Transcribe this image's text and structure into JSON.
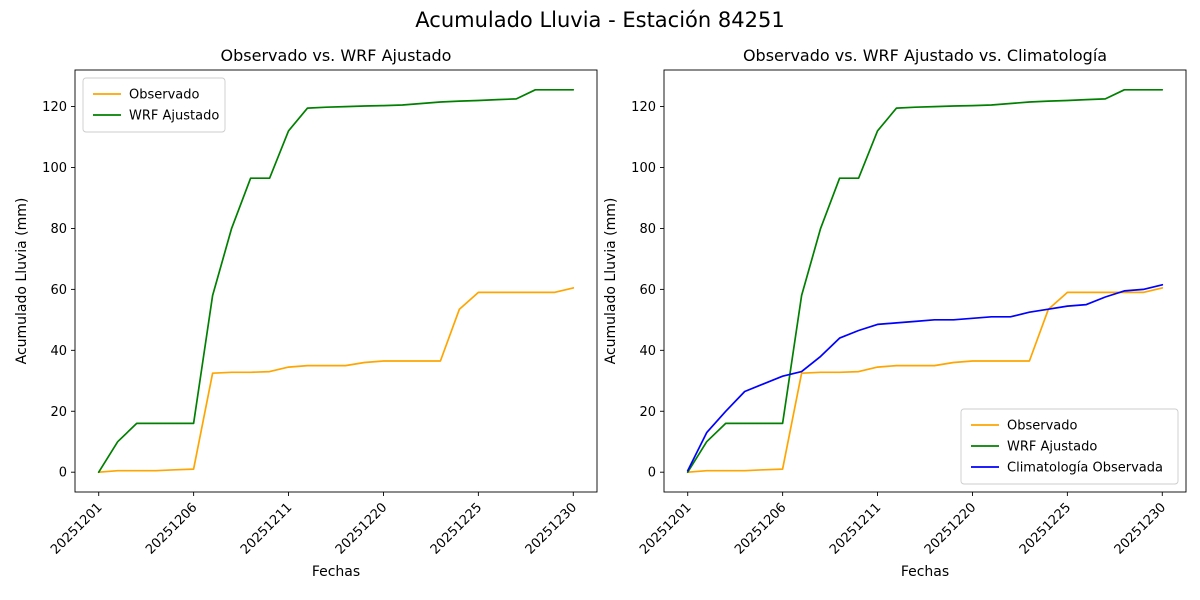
{
  "figure": {
    "title": "Acumulado Lluvia - Estación 84251"
  },
  "chart_data": {
    "type": "line",
    "xlabel": "Fechas",
    "ylabel": "Acumulado Lluvia (mm)",
    "ylim": [
      -6.5,
      132
    ],
    "yticks": [
      0,
      20,
      40,
      60,
      80,
      100,
      120
    ],
    "grid": false,
    "categories": [
      "20251201",
      "20251202",
      "20251203",
      "20251204",
      "20251205",
      "20251206",
      "20251207",
      "20251208",
      "20251209",
      "20251210",
      "20251211",
      "20251216",
      "20251217",
      "20251218",
      "20251219",
      "20251220",
      "20251221",
      "20251222",
      "20251223",
      "20251224",
      "20251225",
      "20251226",
      "20251227",
      "20251228",
      "20251229",
      "20251230"
    ],
    "xtick_indices": [
      0,
      5,
      10,
      15,
      20,
      25
    ],
    "series": [
      {
        "id": "observado",
        "name": "Observado",
        "color": "#FFA500",
        "values": [
          0,
          0.5,
          0.5,
          0.5,
          0.8,
          1,
          32.5,
          32.8,
          32.8,
          33,
          34.5,
          35,
          35,
          35,
          36,
          36.5,
          36.5,
          36.5,
          36.5,
          53.5,
          59,
          59,
          59,
          59,
          59,
          60.5
        ]
      },
      {
        "id": "wrf",
        "name": "WRF Ajustado",
        "color": "#008000",
        "values": [
          0,
          10,
          16,
          16,
          16,
          16,
          58,
          80,
          96.5,
          96.5,
          112,
          119.5,
          119.8,
          120,
          120.2,
          120.3,
          120.5,
          121,
          121.5,
          121.8,
          122,
          122.3,
          122.5,
          125.5,
          125.5,
          125.5
        ]
      },
      {
        "id": "climatologia",
        "name": "Climatología Observada",
        "color": "#0000FF",
        "values": [
          0.5,
          13,
          20,
          26.5,
          29,
          31.5,
          33,
          38,
          44,
          46.5,
          48.5,
          49,
          49.5,
          50,
          50,
          50.5,
          51,
          51,
          52.5,
          53.5,
          54.5,
          55,
          57.5,
          59.5,
          60,
          61.5
        ]
      }
    ],
    "subplots": [
      {
        "title": "Observado vs. WRF Ajustado",
        "series_ids": [
          "observado",
          "wrf"
        ],
        "legend_position": "upper-left"
      },
      {
        "title": "Observado vs. WRF Ajustado vs. Climatología",
        "series_ids": [
          "observado",
          "wrf",
          "climatologia"
        ],
        "legend_position": "lower-right"
      }
    ]
  }
}
